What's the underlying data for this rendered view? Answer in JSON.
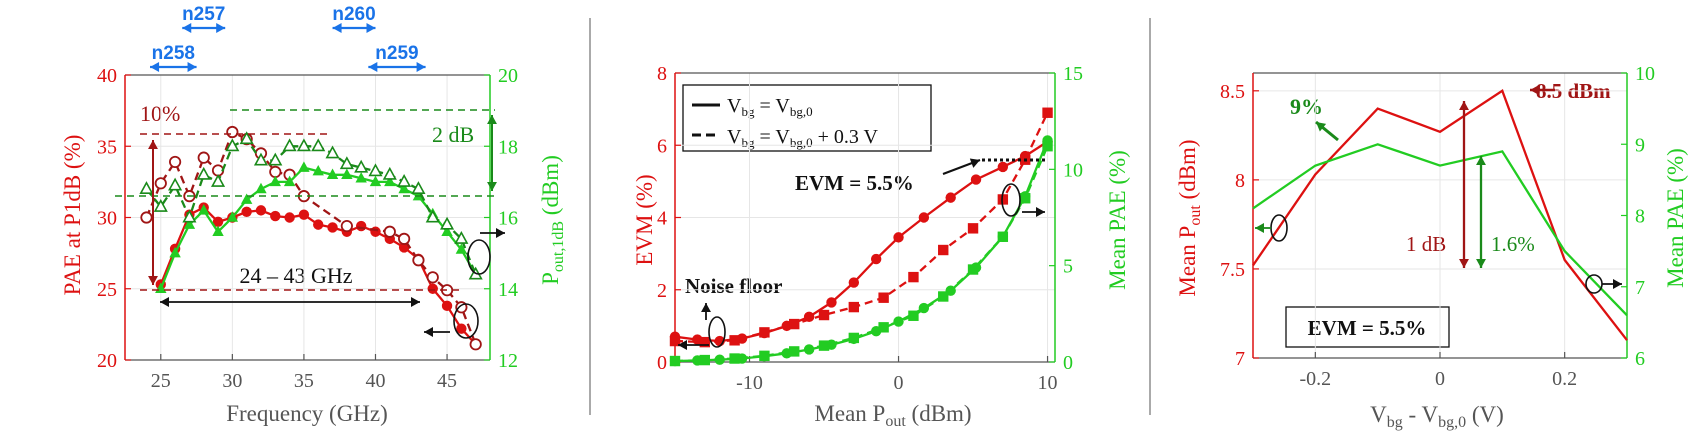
{
  "colors": {
    "red": "#dd1111",
    "darkred": "#a01515",
    "green": "#22cc22",
    "darkgreen": "#1a8a1a",
    "blue": "#1a73e8",
    "axis": "#555555",
    "separator": "#aaaaaa"
  },
  "chart_data": [
    {
      "type": "line",
      "xlabel": "Frequency (GHz)",
      "ylabel": "PAE at P1dB (%)",
      "ylabel2": "Pout,1dB (dBm)",
      "ylabel2_main": "P",
      "ylabel2_sub": "out,1dB",
      "ylabel2_rest": " (dBm)",
      "xlim": [
        22.5,
        48
      ],
      "ylim": [
        20,
        40
      ],
      "ylim2": [
        12,
        20
      ],
      "xticks": [
        25,
        30,
        35,
        40,
        45
      ],
      "yticks": [
        20,
        25,
        30,
        35,
        40
      ],
      "yticks2": [
        12,
        14,
        16,
        18,
        20
      ],
      "grid": true,
      "series": [
        {
          "axis": "left",
          "style": "solid",
          "marker": "filled-circle",
          "color": "red",
          "x": [
            25,
            26,
            27,
            28,
            29,
            30,
            31,
            32,
            33,
            34,
            35,
            36,
            37,
            38,
            39,
            40,
            41,
            42,
            43,
            44,
            45,
            46,
            47
          ],
          "y": [
            25.3,
            27.8,
            30.2,
            30.7,
            29.7,
            30.0,
            30.4,
            30.5,
            30.1,
            30.0,
            30.2,
            29.5,
            29.3,
            29.0,
            29.4,
            29.0,
            28.5,
            27.9,
            27.1,
            25.0,
            23.8,
            22.2,
            21.1
          ]
        },
        {
          "axis": "left",
          "style": "dashed",
          "marker": "open-circle",
          "color": "darkred",
          "x": [
            24,
            25,
            26,
            27,
            28,
            29,
            30,
            31,
            32,
            33,
            34,
            35,
            38,
            41,
            42,
            43,
            44,
            45,
            46,
            47
          ],
          "y": [
            30.0,
            32.4,
            33.9,
            31.5,
            34.2,
            33.3,
            36.0,
            35.5,
            34.5,
            33.2,
            33.0,
            31.5,
            29.4,
            29.0,
            28.5,
            27.0,
            25.8,
            24.9,
            23.7,
            21.1
          ]
        },
        {
          "axis": "right",
          "style": "solid",
          "marker": "filled-triangle",
          "color": "green",
          "x": [
            25,
            26,
            27,
            28,
            29,
            30,
            31,
            32,
            33,
            34,
            35,
            36,
            37,
            38,
            39,
            40,
            41,
            42,
            43,
            44,
            45,
            46,
            47
          ],
          "y": [
            14.0,
            15.0,
            15.8,
            16.2,
            15.6,
            16.0,
            16.5,
            16.8,
            17.0,
            17.0,
            17.4,
            17.3,
            17.2,
            17.2,
            17.1,
            17.0,
            17.0,
            16.8,
            16.6,
            16.1,
            15.6,
            15.1,
            14.4
          ]
        },
        {
          "axis": "right",
          "style": "dashed",
          "marker": "open-triangle",
          "color": "darkgreen",
          "x": [
            24,
            25,
            26,
            27,
            28,
            29,
            30,
            31,
            32,
            33,
            34,
            35,
            36,
            37,
            38,
            39,
            40,
            41,
            42,
            43,
            44,
            45,
            46,
            47
          ],
          "y": [
            16.8,
            16.3,
            16.9,
            16.0,
            17.2,
            17.0,
            18.0,
            18.2,
            17.6,
            17.6,
            18.0,
            18.0,
            18.0,
            17.8,
            17.5,
            17.4,
            17.3,
            17.2,
            17.0,
            16.8,
            16.0,
            15.8,
            15.4,
            14.4
          ]
        }
      ],
      "bands": [
        {
          "name": "n258",
          "from": 24.25,
          "to": 27.5,
          "row": 2
        },
        {
          "name": "n257",
          "from": 26.5,
          "to": 29.5,
          "row": 1
        },
        {
          "name": "n260",
          "from": 37,
          "to": 40,
          "row": 1
        },
        {
          "name": "n259",
          "from": 39.5,
          "to": 43.5,
          "row": 2
        }
      ],
      "annotations": {
        "pct": "10%",
        "db": "2 dB",
        "range": "24 – 43 GHz"
      }
    },
    {
      "type": "line",
      "xlabel": "Mean Pout (dBm)",
      "xlabel_main": "Mean P",
      "xlabel_sub": "out",
      "xlabel_rest": " (dBm)",
      "ylabel": "EVM (%)",
      "ylabel2": "Mean PAE (%)",
      "xlim": [
        -15,
        10.5
      ],
      "ylim": [
        0,
        8
      ],
      "ylim2": [
        0,
        15
      ],
      "xticks": [
        -10,
        0,
        10
      ],
      "yticks": [
        0,
        2,
        4,
        6,
        8
      ],
      "yticks2": [
        0,
        5,
        10,
        15
      ],
      "grid": true,
      "legend": {
        "position": "top-left",
        "entries": [
          "Vbg = Vbg,0",
          "Vbg = Vbg,0 + 0.3 V"
        ]
      },
      "series": [
        {
          "axis": "left",
          "style": "solid",
          "marker": "filled-circle",
          "color": "red",
          "name": "Vbg = Vbg,0",
          "x": [
            -15,
            -13.5,
            -12,
            -10.5,
            -9,
            -7.5,
            -6,
            -4.5,
            -3,
            -1.5,
            0,
            1.7,
            3.5,
            5.2,
            7,
            8.5,
            10
          ],
          "y": [
            0.7,
            0.62,
            0.58,
            0.65,
            0.8,
            1.0,
            1.25,
            1.65,
            2.2,
            2.85,
            3.45,
            4.0,
            4.55,
            5.05,
            5.4,
            5.7,
            6.1
          ]
        },
        {
          "axis": "left",
          "style": "dashed",
          "marker": "filled-square",
          "color": "red",
          "name": "Vbg = Vbg,0 + 0.3 V",
          "x": [
            -15,
            -13,
            -11,
            -9,
            -7,
            -5,
            -3,
            -1,
            1,
            3,
            5,
            7,
            8.5,
            10
          ],
          "y": [
            0.58,
            0.55,
            0.6,
            0.82,
            1.05,
            1.3,
            1.52,
            1.78,
            2.35,
            3.1,
            3.7,
            4.5,
            5.6,
            6.9
          ]
        },
        {
          "axis": "right",
          "style": "solid",
          "marker": "filled-circle",
          "color": "green",
          "name": "Vbg = Vbg,0",
          "x": [
            -15,
            -13.5,
            -12,
            -10.5,
            -9,
            -7.5,
            -6,
            -4.5,
            -3,
            -1.5,
            0,
            1.7,
            3.5,
            5.2,
            7,
            8.5,
            10
          ],
          "y": [
            0.05,
            0.08,
            0.12,
            0.18,
            0.3,
            0.45,
            0.65,
            0.9,
            1.2,
            1.6,
            2.1,
            2.8,
            3.7,
            4.9,
            6.5,
            8.6,
            11.5
          ]
        },
        {
          "axis": "right",
          "style": "dashed",
          "marker": "filled-square",
          "color": "green",
          "name": "Vbg = Vbg,0 + 0.3 V",
          "x": [
            -15,
            -13,
            -11,
            -9,
            -7,
            -5,
            -3,
            -1,
            1,
            3,
            5,
            7,
            8.5,
            10
          ],
          "y": [
            0.05,
            0.1,
            0.18,
            0.32,
            0.55,
            0.85,
            1.25,
            1.8,
            2.4,
            3.4,
            4.8,
            6.5,
            8.5,
            11.2
          ]
        }
      ],
      "annotations": {
        "evm": "EVM = 5.5%",
        "noise": "Noise floor"
      }
    },
    {
      "type": "line",
      "xlabel": "Vbg - Vbg,0 (V)",
      "ylabel": "Mean Pout (dBm)",
      "ylabel_main": "Mean P",
      "ylabel_sub": "out",
      "ylabel_rest": " (dBm)",
      "ylabel2": "Mean PAE (%)",
      "xlim": [
        -0.3,
        0.3
      ],
      "ylim": [
        7,
        8.6
      ],
      "ylim2": [
        6,
        10
      ],
      "xticks": [
        -0.2,
        0,
        0.2
      ],
      "xticklabels": [
        "-0.2",
        "0",
        "0.2"
      ],
      "yticks": [
        7,
        7.5,
        8,
        8.5
      ],
      "yticks2": [
        6,
        7,
        8,
        9,
        10
      ],
      "grid": true,
      "series": [
        {
          "axis": "left",
          "style": "solid",
          "marker": "none",
          "color": "red",
          "x": [
            -0.3,
            -0.2,
            -0.1,
            0,
            0.1,
            0.2,
            0.3
          ],
          "y": [
            7.52,
            8.03,
            8.4,
            8.27,
            8.5,
            7.55,
            7.1
          ]
        },
        {
          "axis": "right",
          "style": "solid",
          "marker": "none",
          "color": "green",
          "x": [
            -0.3,
            -0.2,
            -0.1,
            0,
            0.1,
            0.2,
            0.3
          ],
          "y": [
            8.1,
            8.7,
            9.0,
            8.7,
            8.9,
            7.5,
            6.6
          ]
        }
      ],
      "annotations": {
        "dbm": "8.5 dBm",
        "pct": "9%",
        "db": "1 dB",
        "pae": "1.6%",
        "evm": "EVM = 5.5%"
      }
    }
  ]
}
